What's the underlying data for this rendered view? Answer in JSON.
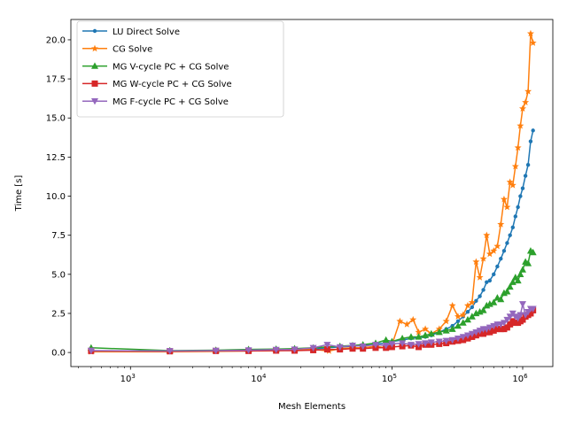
{
  "chart_data": {
    "type": "line",
    "title": "",
    "xlabel": "Mesh Elements",
    "ylabel": "Time [s]",
    "xscale": "log",
    "xlim": [
      350,
      1700000
    ],
    "ylim": [
      -0.9,
      21.3
    ],
    "xticks": [
      {
        "base": "10",
        "exp": "3",
        "value": 1000
      },
      {
        "base": "10",
        "exp": "4",
        "value": 10000
      },
      {
        "base": "10",
        "exp": "5",
        "value": 100000
      },
      {
        "base": "10",
        "exp": "6",
        "value": 1000000
      }
    ],
    "yticks": [
      "0.0",
      "2.5",
      "5.0",
      "7.5",
      "10.0",
      "12.5",
      "15.0",
      "17.5",
      "20.0"
    ],
    "legend_position": "upper-left",
    "series": [
      {
        "name": "LU Direct Solve",
        "color": "#1f77b4",
        "marker": "dot",
        "x": [
          500,
          2000,
          4500,
          8000,
          13000,
          18000,
          25000,
          32000,
          40000,
          50000,
          60000,
          75000,
          90000,
          100000,
          120000,
          140000,
          160000,
          180000,
          200000,
          230000,
          260000,
          290000,
          320000,
          350000,
          380000,
          410000,
          440000,
          470000,
          500000,
          530000,
          560000,
          600000,
          640000,
          680000,
          720000,
          760000,
          800000,
          840000,
          880000,
          920000,
          960000,
          1000000,
          1050000,
          1100000,
          1150000,
          1200000
        ],
        "y": [
          0.1,
          0.08,
          0.1,
          0.12,
          0.15,
          0.18,
          0.22,
          0.3,
          0.35,
          0.4,
          0.45,
          0.55,
          0.6,
          0.7,
          0.8,
          0.9,
          0.95,
          1.0,
          1.1,
          1.3,
          1.5,
          1.7,
          2.0,
          2.3,
          2.6,
          2.9,
          3.3,
          3.6,
          4.0,
          4.5,
          4.6,
          5.0,
          5.5,
          6.0,
          6.5,
          7.0,
          7.5,
          8.0,
          8.7,
          9.3,
          10.0,
          10.5,
          11.3,
          12.0,
          13.5,
          14.2
        ]
      },
      {
        "name": "CG Solve",
        "color": "#ff7f0e",
        "marker": "star",
        "x": [
          500,
          2000,
          4500,
          8000,
          13000,
          18000,
          25000,
          33000,
          40000,
          50000,
          60000,
          75000,
          90000,
          100000,
          115000,
          130000,
          145000,
          160000,
          180000,
          200000,
          230000,
          260000,
          290000,
          320000,
          350000,
          380000,
          410000,
          440000,
          470000,
          500000,
          530000,
          560000,
          600000,
          640000,
          680000,
          720000,
          760000,
          800000,
          840000,
          880000,
          920000,
          960000,
          1000000,
          1050000,
          1100000,
          1150000,
          1200000
        ],
        "y": [
          0.05,
          0.05,
          0.07,
          0.1,
          0.12,
          0.15,
          0.2,
          0.1,
          0.25,
          0.3,
          0.3,
          0.4,
          0.3,
          0.5,
          2.0,
          1.8,
          2.1,
          1.3,
          1.5,
          1.2,
          1.5,
          2.0,
          3.0,
          2.3,
          2.4,
          3.0,
          3.2,
          5.8,
          4.8,
          6.0,
          7.5,
          6.3,
          6.5,
          6.8,
          8.2,
          9.8,
          9.3,
          10.9,
          10.7,
          11.9,
          13.1,
          14.5,
          15.6,
          16.0,
          16.7,
          20.4,
          19.8
        ]
      },
      {
        "name": "MG V-cycle PC + CG Solve",
        "color": "#2ca02c",
        "marker": "triangle",
        "x": [
          500,
          2000,
          4500,
          8000,
          13000,
          18000,
          25000,
          32000,
          40000,
          50000,
          60000,
          75000,
          90000,
          100000,
          120000,
          140000,
          160000,
          180000,
          200000,
          230000,
          260000,
          290000,
          320000,
          350000,
          380000,
          410000,
          440000,
          470000,
          500000,
          530000,
          560000,
          600000,
          640000,
          680000,
          720000,
          760000,
          800000,
          840000,
          880000,
          920000,
          960000,
          1000000,
          1050000,
          1100000,
          1150000,
          1200000
        ],
        "y": [
          0.3,
          0.12,
          0.15,
          0.2,
          0.22,
          0.25,
          0.3,
          0.35,
          0.4,
          0.45,
          0.5,
          0.6,
          0.8,
          0.7,
          0.9,
          1.0,
          1.0,
          1.1,
          1.2,
          1.3,
          1.4,
          1.5,
          1.7,
          1.9,
          2.1,
          2.3,
          2.5,
          2.6,
          2.7,
          3.0,
          3.1,
          3.2,
          3.5,
          3.4,
          3.8,
          3.9,
          4.2,
          4.5,
          4.8,
          4.6,
          5.0,
          5.3,
          5.8,
          5.7,
          6.5,
          6.4
        ]
      },
      {
        "name": "MG W-cycle PC + CG Solve",
        "color": "#d62728",
        "marker": "square",
        "x": [
          500,
          2000,
          4500,
          8000,
          13000,
          18000,
          25000,
          32000,
          40000,
          50000,
          60000,
          75000,
          90000,
          100000,
          120000,
          140000,
          160000,
          180000,
          200000,
          230000,
          260000,
          290000,
          320000,
          350000,
          380000,
          410000,
          440000,
          470000,
          500000,
          530000,
          560000,
          600000,
          640000,
          680000,
          720000,
          760000,
          800000,
          840000,
          880000,
          920000,
          960000,
          1000000,
          1050000,
          1100000,
          1150000,
          1200000
        ],
        "y": [
          0.1,
          0.08,
          0.1,
          0.1,
          0.12,
          0.12,
          0.15,
          0.2,
          0.2,
          0.25,
          0.25,
          0.3,
          0.3,
          0.35,
          0.4,
          0.45,
          0.35,
          0.5,
          0.5,
          0.55,
          0.6,
          0.7,
          0.75,
          0.8,
          0.9,
          1.0,
          1.1,
          1.2,
          1.2,
          1.3,
          1.3,
          1.4,
          1.5,
          1.5,
          1.5,
          1.6,
          1.8,
          2.0,
          1.9,
          1.9,
          2.0,
          2.1,
          2.3,
          2.4,
          2.5,
          2.7
        ]
      },
      {
        "name": "MG F-cycle PC + CG Solve",
        "color": "#9467bd",
        "marker": "triangle-down",
        "x": [
          500,
          2000,
          4500,
          8000,
          13000,
          18000,
          25000,
          32000,
          40000,
          50000,
          60000,
          75000,
          90000,
          100000,
          120000,
          140000,
          160000,
          180000,
          200000,
          230000,
          260000,
          290000,
          320000,
          350000,
          380000,
          410000,
          440000,
          470000,
          500000,
          530000,
          560000,
          600000,
          640000,
          680000,
          720000,
          760000,
          800000,
          840000,
          880000,
          920000,
          960000,
          1000000,
          1050000,
          1100000,
          1150000,
          1200000
        ],
        "y": [
          0.12,
          0.1,
          0.12,
          0.15,
          0.18,
          0.2,
          0.3,
          0.5,
          0.35,
          0.45,
          0.4,
          0.5,
          0.45,
          0.55,
          0.6,
          0.5,
          0.55,
          0.6,
          0.65,
          0.7,
          0.75,
          0.8,
          0.9,
          1.0,
          1.1,
          1.2,
          1.3,
          1.4,
          1.5,
          1.5,
          1.6,
          1.7,
          1.8,
          1.8,
          1.9,
          2.1,
          2.3,
          2.5,
          2.3,
          2.2,
          2.4,
          3.1,
          2.4,
          2.6,
          2.8,
          2.8
        ]
      }
    ]
  }
}
